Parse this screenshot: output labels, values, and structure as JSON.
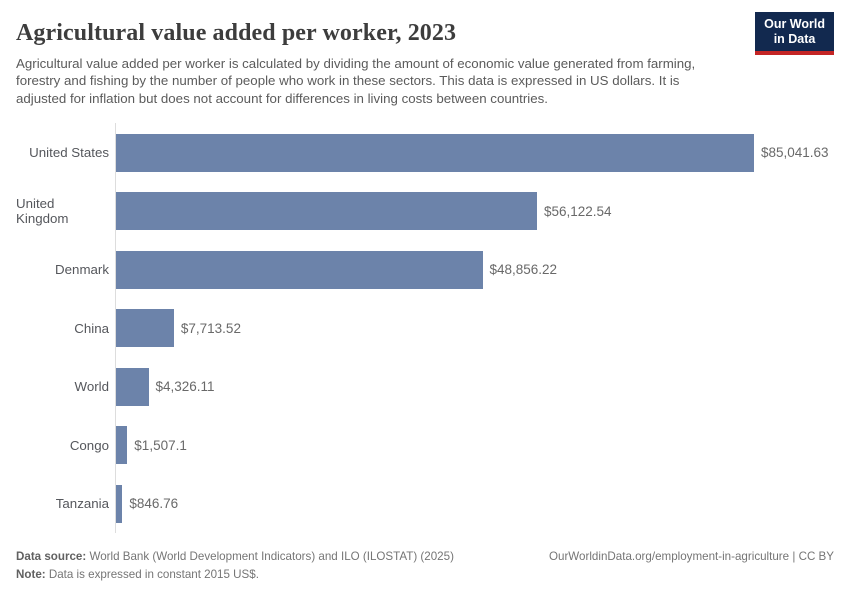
{
  "header": {
    "title": "Agricultural value added per worker, 2023",
    "subtitle": "Agricultural value added per worker is calculated by dividing the amount of economic value generated from farming, forestry and fishing by the number of people who work in these sectors. This data is expressed in US dollars. It is adjusted for inflation but does not account for differences in living costs between countries.",
    "logo": {
      "line1": "Our World",
      "line2": "in Data"
    }
  },
  "colors": {
    "bar": "#6c83aa",
    "axis_line": "#dddddd",
    "logo_bg": "#12294f",
    "logo_accent": "#c42525"
  },
  "chart_data": {
    "type": "bar",
    "orientation": "horizontal",
    "title": "Agricultural value added per worker, 2023",
    "categories": [
      "United States",
      "United Kingdom",
      "Denmark",
      "China",
      "World",
      "Congo",
      "Tanzania"
    ],
    "values": [
      85041.63,
      56122.54,
      48856.22,
      7713.52,
      4326.11,
      1507.1,
      846.76
    ],
    "value_labels": [
      "$85,041.63",
      "$56,122.54",
      "$48,856.22",
      "$7,713.52",
      "$4,326.11",
      "$1,507.1",
      "$846.76"
    ],
    "unit": "constant 2015 US$",
    "xlabel": "",
    "ylabel": "",
    "xlim": [
      0,
      85041.63
    ],
    "grid": false,
    "legend": "none"
  },
  "footer": {
    "datasource_label": "Data source:",
    "datasource_text": " World Bank (World Development Indicators) and ILO (ILOSTAT) (2025)",
    "link": "OurWorldinData.org/employment-in-agriculture | CC BY",
    "note_label": "Note:",
    "note_text": " Data is expressed in constant 2015 US$."
  }
}
